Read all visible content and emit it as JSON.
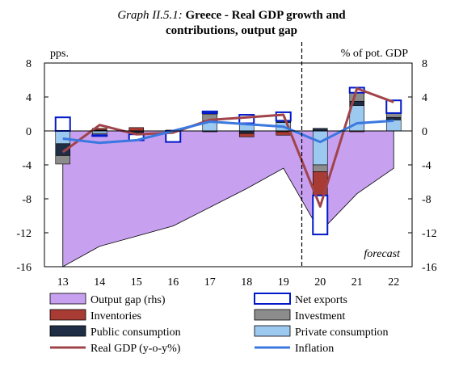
{
  "title": {
    "prefix": "Graph II.5.1:",
    "line1": "Greece - Real GDP growth and",
    "line2": "contributions, output gap"
  },
  "chart_data": {
    "type": "bar",
    "categories": [
      "13",
      "14",
      "15",
      "16",
      "17",
      "18",
      "19",
      "20",
      "21",
      "22"
    ],
    "ylabel_left": "pps.",
    "ylabel_right": "% of pot. GDP",
    "ylim_left": [
      -16,
      8
    ],
    "ylim_right": [
      -16,
      8
    ],
    "yticks_left": [
      "8",
      "4",
      "0",
      "-4",
      "-8",
      "-12",
      "-16"
    ],
    "yticks_right": [
      "8",
      "4",
      "0",
      "-4",
      "-8",
      "-12",
      "-16"
    ],
    "annotation": "forecast",
    "stacked_series": [
      {
        "key": "private",
        "name": "Private consumption",
        "color": "#9cc9ef",
        "values": [
          -1.5,
          -0.3,
          -0.1,
          0.1,
          1.2,
          0.9,
          1.0,
          -4.0,
          3.0,
          1.3
        ]
      },
      {
        "key": "public",
        "name": "Public consumption",
        "color": "#1f2d45",
        "values": [
          -1.4,
          0.1,
          -0.2,
          0.0,
          -0.1,
          -0.3,
          0.2,
          0.3,
          0.5,
          0.3
        ]
      },
      {
        "key": "investment",
        "name": "Investment",
        "color": "#8c8c8c",
        "values": [
          -1.0,
          -0.2,
          -0.1,
          0.0,
          0.8,
          0.0,
          -0.1,
          -0.8,
          1.0,
          0.5
        ]
      },
      {
        "key": "inventories",
        "name": "Inventories",
        "color": "#a83b33",
        "values": [
          0.0,
          0.2,
          0.4,
          0.0,
          0.1,
          -0.4,
          -0.4,
          -2.8,
          -0.1,
          0.0
        ]
      },
      {
        "key": "net_exports",
        "name": "Net exports",
        "color": "#ffffff",
        "values": [
          1.6,
          -0.1,
          -0.7,
          -1.3,
          0.2,
          1.0,
          1.0,
          -4.6,
          0.6,
          1.5
        ]
      }
    ],
    "output_gap": {
      "name": "Output gap (rhs)",
      "color": "#c8a0f0",
      "values": [
        -16.0,
        -13.6,
        -12.4,
        -11.2,
        -9.0,
        -6.8,
        -4.4,
        -11.9,
        -7.4,
        -4.4
      ]
    },
    "real_gdp": {
      "name": "Real GDP (y-o-y%)",
      "color": "#a0444a",
      "values": [
        -2.5,
        0.7,
        -0.4,
        -0.2,
        1.3,
        1.6,
        1.9,
        -8.9,
        5.0,
        3.4
      ]
    },
    "inflation": {
      "name": "Inflation",
      "color": "#3a78e0",
      "values": [
        -0.9,
        -1.4,
        -1.1,
        0.0,
        1.1,
        0.8,
        0.5,
        -1.3,
        0.9,
        1.2
      ]
    }
  },
  "legend": [
    {
      "key": "output_gap",
      "label": "Output gap (rhs)"
    },
    {
      "key": "net_exports",
      "label": "Net exports"
    },
    {
      "key": "inventories",
      "label": "Inventories"
    },
    {
      "key": "investment",
      "label": "Investment"
    },
    {
      "key": "public",
      "label": "Public consumption"
    },
    {
      "key": "private",
      "label": "Private consumption"
    },
    {
      "key": "real_gdp",
      "label": "Real GDP (y-o-y%)"
    },
    {
      "key": "inflation",
      "label": "Inflation"
    }
  ]
}
